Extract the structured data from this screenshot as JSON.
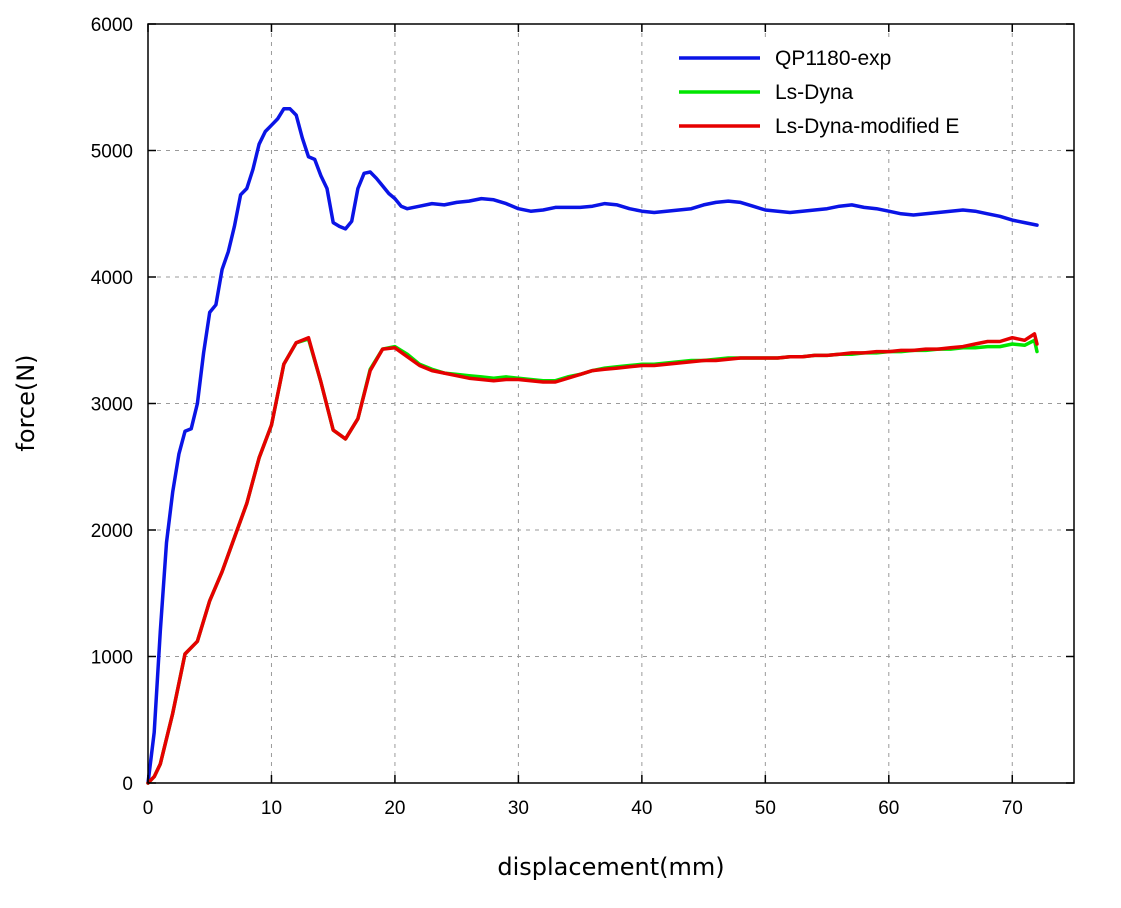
{
  "chart_data": {
    "type": "line",
    "title": "",
    "xlabel": "displacement(mm)",
    "ylabel": "force(N)",
    "xlim": [
      0,
      75
    ],
    "ylim": [
      0,
      6000
    ],
    "xticks": [
      0,
      10,
      20,
      30,
      40,
      50,
      60,
      70
    ],
    "yticks": [
      0,
      1000,
      2000,
      3000,
      4000,
      5000,
      6000
    ],
    "grid": true,
    "legend_position": "top-right",
    "series": [
      {
        "name": "QP1180-exp",
        "color": "#0a14e6",
        "x": [
          0,
          0.5,
          1,
          1.5,
          2,
          2.5,
          3,
          3.5,
          4,
          4.5,
          5,
          5.5,
          6,
          6.5,
          7,
          7.5,
          8,
          8.5,
          9,
          9.5,
          10,
          10.5,
          11,
          11.5,
          12,
          12.5,
          13,
          13.5,
          14,
          14.5,
          15,
          15.5,
          16,
          16.5,
          17,
          17.5,
          18,
          18.5,
          19,
          19.5,
          20,
          20.5,
          21,
          22,
          23,
          24,
          25,
          26,
          27,
          28,
          29,
          30,
          31,
          32,
          33,
          34,
          35,
          36,
          37,
          38,
          39,
          40,
          41,
          42,
          43,
          44,
          45,
          46,
          47,
          48,
          49,
          50,
          51,
          52,
          53,
          54,
          55,
          56,
          57,
          58,
          59,
          60,
          61,
          62,
          63,
          64,
          65,
          66,
          67,
          68,
          69,
          70,
          71,
          72
        ],
        "y": [
          0,
          400,
          1200,
          1900,
          2300,
          2600,
          2780,
          2800,
          3000,
          3400,
          3720,
          3780,
          4060,
          4200,
          4400,
          4650,
          4700,
          4850,
          5050,
          5150,
          5200,
          5250,
          5330,
          5330,
          5280,
          5100,
          4950,
          4930,
          4800,
          4700,
          4430,
          4400,
          4380,
          4440,
          4700,
          4820,
          4830,
          4780,
          4720,
          4660,
          4620,
          4560,
          4540,
          4560,
          4580,
          4570,
          4590,
          4600,
          4620,
          4610,
          4580,
          4540,
          4520,
          4530,
          4550,
          4550,
          4550,
          4560,
          4580,
          4570,
          4540,
          4520,
          4510,
          4520,
          4530,
          4540,
          4570,
          4590,
          4600,
          4590,
          4560,
          4530,
          4520,
          4510,
          4520,
          4530,
          4540,
          4560,
          4570,
          4550,
          4540,
          4520,
          4500,
          4490,
          4500,
          4510,
          4520,
          4530,
          4520,
          4500,
          4480,
          4450,
          4430,
          4410
        ]
      },
      {
        "name": "Ls-Dyna",
        "color": "#00e600",
        "x": [
          0,
          0.5,
          1,
          2,
          3,
          4,
          5,
          6,
          7,
          8,
          9,
          10,
          11,
          12,
          13,
          14,
          15,
          16,
          17,
          18,
          19,
          20,
          21,
          22,
          23,
          24,
          25,
          26,
          27,
          28,
          29,
          30,
          31,
          32,
          33,
          34,
          35,
          36,
          37,
          38,
          39,
          40,
          41,
          42,
          43,
          44,
          45,
          46,
          47,
          48,
          49,
          50,
          51,
          52,
          53,
          54,
          55,
          56,
          57,
          58,
          59,
          60,
          61,
          62,
          63,
          64,
          65,
          66,
          67,
          68,
          69,
          70,
          71,
          71.8,
          72
        ],
        "y": [
          0,
          50,
          150,
          550,
          1020,
          1120,
          1440,
          1670,
          1940,
          2210,
          2570,
          2830,
          3310,
          3480,
          3510,
          3170,
          2790,
          2720,
          2880,
          3270,
          3430,
          3450,
          3390,
          3310,
          3270,
          3240,
          3230,
          3220,
          3210,
          3200,
          3210,
          3200,
          3190,
          3180,
          3180,
          3210,
          3230,
          3260,
          3280,
          3290,
          3300,
          3310,
          3310,
          3320,
          3330,
          3340,
          3340,
          3350,
          3360,
          3360,
          3360,
          3360,
          3360,
          3370,
          3370,
          3380,
          3380,
          3390,
          3390,
          3400,
          3400,
          3410,
          3410,
          3420,
          3420,
          3430,
          3430,
          3440,
          3440,
          3450,
          3450,
          3470,
          3460,
          3500,
          3410
        ]
      },
      {
        "name": "Ls-Dyna-modified E",
        "color": "#e60000",
        "x": [
          0,
          0.5,
          1,
          2,
          3,
          4,
          5,
          6,
          7,
          8,
          9,
          10,
          11,
          12,
          13,
          14,
          15,
          16,
          17,
          18,
          19,
          20,
          21,
          22,
          23,
          24,
          25,
          26,
          27,
          28,
          29,
          30,
          31,
          32,
          33,
          34,
          35,
          36,
          37,
          38,
          39,
          40,
          41,
          42,
          43,
          44,
          45,
          46,
          47,
          48,
          49,
          50,
          51,
          52,
          53,
          54,
          55,
          56,
          57,
          58,
          59,
          60,
          61,
          62,
          63,
          64,
          65,
          66,
          67,
          68,
          69,
          70,
          71,
          71.8,
          72
        ],
        "y": [
          0,
          50,
          150,
          550,
          1020,
          1120,
          1440,
          1670,
          1940,
          2210,
          2570,
          2830,
          3310,
          3480,
          3520,
          3170,
          2790,
          2720,
          2880,
          3260,
          3430,
          3440,
          3370,
          3300,
          3260,
          3240,
          3220,
          3200,
          3190,
          3180,
          3190,
          3190,
          3180,
          3170,
          3170,
          3200,
          3230,
          3260,
          3270,
          3280,
          3290,
          3300,
          3300,
          3310,
          3320,
          3330,
          3340,
          3340,
          3350,
          3360,
          3360,
          3360,
          3360,
          3370,
          3370,
          3380,
          3380,
          3390,
          3400,
          3400,
          3410,
          3410,
          3420,
          3420,
          3430,
          3430,
          3440,
          3450,
          3470,
          3490,
          3490,
          3520,
          3500,
          3550,
          3470
        ]
      }
    ]
  }
}
